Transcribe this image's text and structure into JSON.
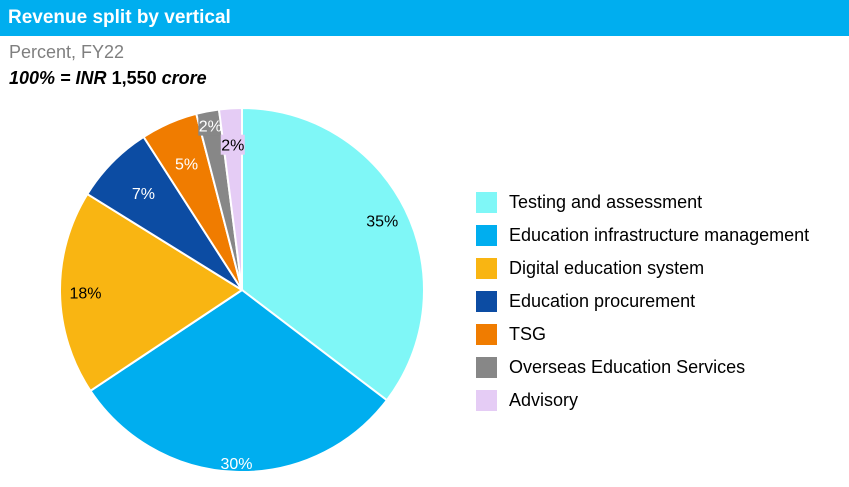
{
  "header": {
    "title": "Revenue split by vertical"
  },
  "subtitle": "Percent, FY22",
  "total_label": {
    "prefix": "100% = INR",
    "value": "1,550",
    "suffix": "crore"
  },
  "chart_data": {
    "type": "pie",
    "title": "Revenue split by vertical",
    "slices": [
      {
        "label": "Testing and assessment",
        "value": 35,
        "display": "35%",
        "color": "#7ff7f7",
        "text_color": "#000000"
      },
      {
        "label": "Education infrastructure management",
        "value": 30,
        "display": "30%",
        "color": "#00aeef",
        "text_color": "#ffffff"
      },
      {
        "label": "Digital education system",
        "value": 18,
        "display": "18%",
        "color": "#f9b512",
        "text_color": "#000000"
      },
      {
        "label": "Education procurement",
        "value": 7,
        "display": "7%",
        "color": "#0c4ca3",
        "text_color": "#ffffff"
      },
      {
        "label": "TSG",
        "value": 5,
        "display": "5%",
        "color": "#f07c00",
        "text_color": "#ffffff"
      },
      {
        "label": "Overseas Education Services",
        "value": 2,
        "display": "2%",
        "color": "#878787",
        "text_color": "#ffffff"
      },
      {
        "label": "Advisory",
        "value": 2,
        "display": "2%",
        "color": "#e5ccf5",
        "text_color": "#000000"
      }
    ],
    "legend_position": "right"
  }
}
